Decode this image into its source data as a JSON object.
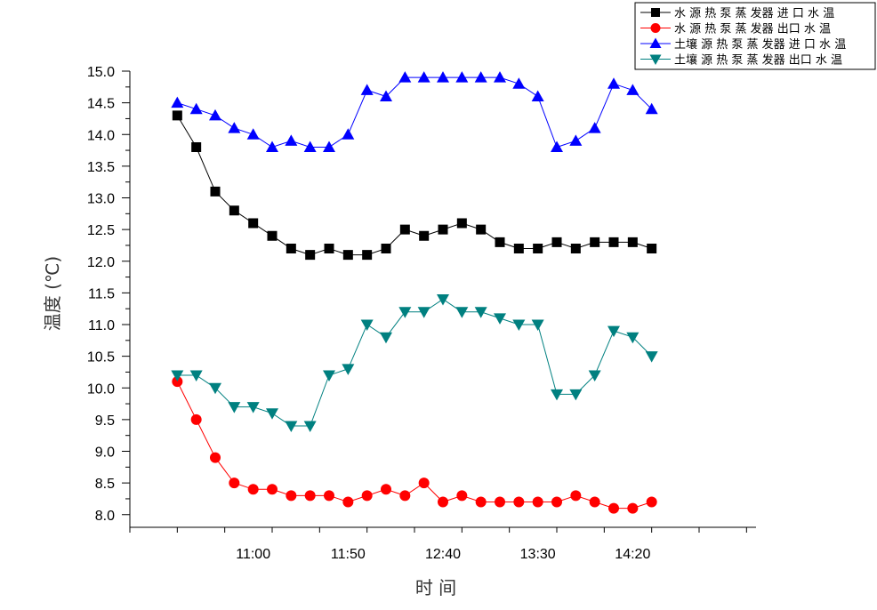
{
  "chart_data": {
    "type": "line",
    "xlabel": "时 间",
    "ylabel": "温度 (℃)",
    "ylim": [
      7.8,
      15.0
    ],
    "yticks": [
      8.0,
      8.5,
      9.0,
      9.5,
      10.0,
      10.5,
      11.0,
      11.5,
      12.0,
      12.5,
      13.0,
      13.5,
      14.0,
      14.5,
      15.0
    ],
    "ytick_labels": [
      "8.0",
      "8.5",
      "9.0",
      "9.5",
      "10.0",
      "10.5",
      "11.0",
      "11.5",
      "12.0",
      "12.5",
      "13.0",
      "13.5",
      "14.0",
      "14.5",
      "15.0"
    ],
    "xlim": [
      "09:55",
      "15:25"
    ],
    "xticks": [
      "11:00",
      "11:50",
      "12:40",
      "13:30",
      "14:20"
    ],
    "x": [
      "10:20",
      "10:30",
      "10:40",
      "10:50",
      "11:00",
      "11:10",
      "11:20",
      "11:30",
      "11:40",
      "11:50",
      "12:00",
      "12:10",
      "12:20",
      "12:30",
      "12:40",
      "12:50",
      "13:00",
      "13:10",
      "13:20",
      "13:30",
      "13:40",
      "13:50",
      "14:00",
      "14:10",
      "14:20",
      "14:30"
    ],
    "legend_position": "top-right",
    "series": [
      {
        "name": "水 源 热 泵 蒸 发器 进 口 水 温",
        "color": "#000000",
        "marker": "square",
        "values": [
          14.3,
          13.8,
          13.1,
          12.8,
          12.6,
          12.4,
          12.2,
          12.1,
          12.2,
          12.1,
          12.1,
          12.2,
          12.5,
          12.4,
          12.5,
          12.6,
          12.5,
          12.3,
          12.2,
          12.2,
          12.3,
          12.2,
          12.3,
          12.3,
          12.3,
          12.2
        ]
      },
      {
        "name": "水 源 热 泵 蒸 发器  出口 水 温",
        "color": "#ff0000",
        "marker": "circle",
        "values": [
          10.1,
          9.5,
          8.9,
          8.5,
          8.4,
          8.4,
          8.3,
          8.3,
          8.3,
          8.2,
          8.3,
          8.4,
          8.3,
          8.5,
          8.2,
          8.3,
          8.2,
          8.2,
          8.2,
          8.2,
          8.2,
          8.3,
          8.2,
          8.1,
          8.1,
          8.2
        ]
      },
      {
        "name": "土壤 源 热 泵 蒸 发器  进 口 水 温",
        "color": "#0000ff",
        "marker": "triangle-up",
        "values": [
          14.5,
          14.4,
          14.3,
          14.1,
          14.0,
          13.8,
          13.9,
          13.8,
          13.8,
          14.0,
          14.7,
          14.6,
          14.9,
          14.9,
          14.9,
          14.9,
          14.9,
          14.9,
          14.8,
          14.6,
          13.8,
          13.9,
          14.1,
          14.8,
          14.7,
          14.4
        ]
      },
      {
        "name": "土壤 源 热 泵 蒸 发器  出口 水 温",
        "color": "#008080",
        "marker": "triangle-down",
        "values": [
          10.2,
          10.2,
          10.0,
          9.7,
          9.7,
          9.6,
          9.4,
          9.4,
          10.2,
          10.3,
          11.0,
          10.8,
          11.2,
          11.2,
          11.4,
          11.2,
          11.2,
          11.1,
          11.0,
          11.0,
          9.9,
          9.9,
          10.2,
          10.9,
          10.8,
          10.5
        ]
      }
    ]
  }
}
